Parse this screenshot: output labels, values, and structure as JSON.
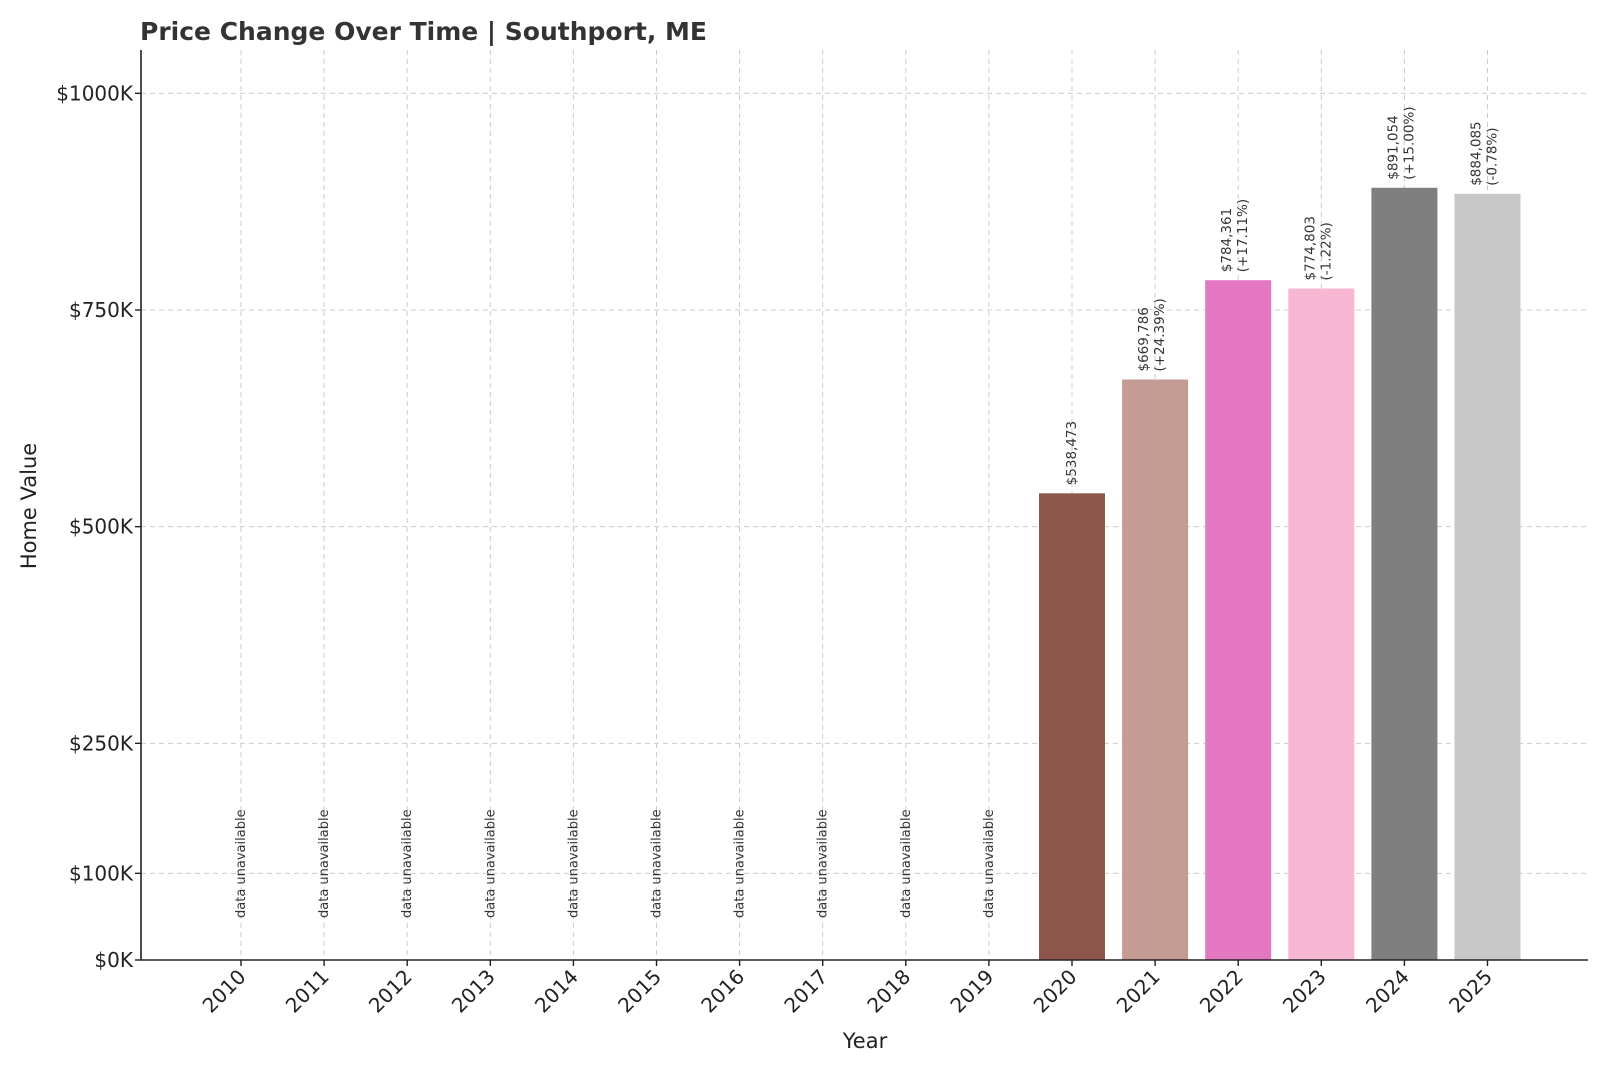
{
  "chart_data": {
    "type": "bar",
    "title": "Price Change Over Time | Southport, ME",
    "xlabel": "Year",
    "ylabel": "Home Value",
    "ylim": [
      0,
      1050000
    ],
    "grid": true,
    "y_ticks": [
      {
        "value": 0,
        "label": "$0K"
      },
      {
        "value": 100000,
        "label": "$100K"
      },
      {
        "value": 250000,
        "label": "$250K"
      },
      {
        "value": 500000,
        "label": "$500K"
      },
      {
        "value": 750000,
        "label": "$750K"
      },
      {
        "value": 1000000,
        "label": "$1000K"
      }
    ],
    "categories": [
      "2010",
      "2011",
      "2012",
      "2013",
      "2014",
      "2015",
      "2016",
      "2017",
      "2018",
      "2019",
      "2020",
      "2021",
      "2022",
      "2023",
      "2024",
      "2025"
    ],
    "values": [
      null,
      null,
      null,
      null,
      null,
      null,
      null,
      null,
      null,
      null,
      538473,
      669786,
      784361,
      774803,
      891054,
      884085
    ],
    "value_labels": [
      "",
      "",
      "",
      "",
      "",
      "",
      "",
      "",
      "",
      "",
      "$538,473",
      "$669,786",
      "$784,361",
      "$774,803",
      "$891,054",
      "$884,085"
    ],
    "change_labels": [
      "",
      "",
      "",
      "",
      "",
      "",
      "",
      "",
      "",
      "",
      "",
      "(+24.39%)",
      "(+17.11%)",
      "(-1.22%)",
      "(+15.00%)",
      "(-0.78%)"
    ],
    "unavailable_label": "data unavailable",
    "colors": [
      "#8c564b",
      "#8c564b",
      "#8c564b",
      "#8c564b",
      "#8c564b",
      "#8c564b",
      "#8c564b",
      "#8c564b",
      "#8c564b",
      "#8c564b",
      "#8c564b",
      "#c49c94",
      "#e377c2",
      "#f7b6d2",
      "#7f7f7f",
      "#c7c7c7"
    ]
  }
}
